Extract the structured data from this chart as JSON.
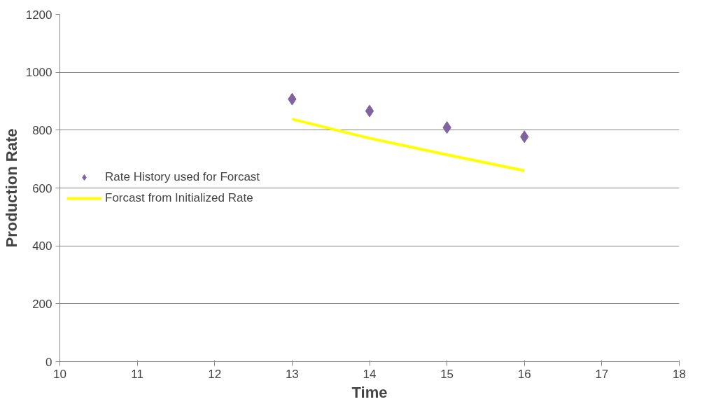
{
  "chart_data": {
    "type": "scatter",
    "xlabel": "Time",
    "ylabel": "Production Rate",
    "xlim": [
      10,
      18
    ],
    "xticks": [
      10,
      11,
      12,
      13,
      14,
      15,
      16,
      17,
      18
    ],
    "ylim": [
      0,
      1200
    ],
    "yticks": [
      0,
      200,
      400,
      600,
      800,
      1000,
      1200
    ],
    "grid": "y",
    "legend": "left",
    "series": [
      {
        "name": "Rate History used for Forcast",
        "marker": "diamond",
        "color": "#8064a2",
        "x": [
          13,
          14,
          15,
          16
        ],
        "values": [
          907,
          866,
          809,
          777
        ]
      },
      {
        "name": "Forcast from Initialized Rate",
        "type": "line",
        "marker": "none",
        "line_style": "solid",
        "color": "#ffff00",
        "x": [
          13,
          14,
          15,
          16
        ],
        "values": [
          838,
          772,
          715,
          660
        ]
      }
    ]
  }
}
